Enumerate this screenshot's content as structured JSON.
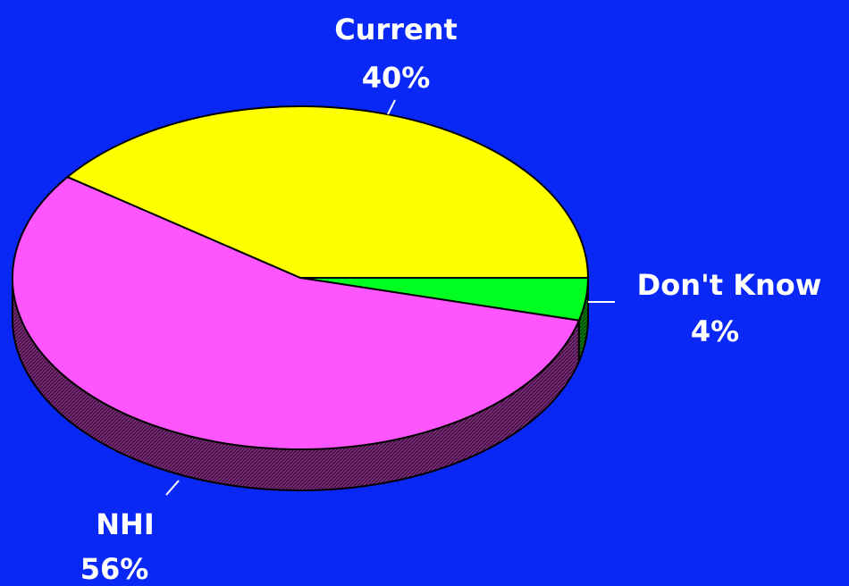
{
  "chart_data": {
    "type": "pie",
    "style": "3d-exploded-depth",
    "title": "",
    "slices": [
      {
        "label": "Current",
        "value": 40,
        "value_label": "40%",
        "color": "#ffff00"
      },
      {
        "label": "Don't Know",
        "value": 4,
        "value_label": "4%",
        "color": "#00ff21"
      },
      {
        "label": "NHI",
        "value": 56,
        "value_label": "56%",
        "color": "#ff55ff"
      }
    ],
    "colors": {
      "background": "#0a28f5",
      "side_nhi": "#7a2a78",
      "side_dontknow": "#0a7a10",
      "outline": "#000000",
      "label_text": "#ffffff"
    }
  }
}
